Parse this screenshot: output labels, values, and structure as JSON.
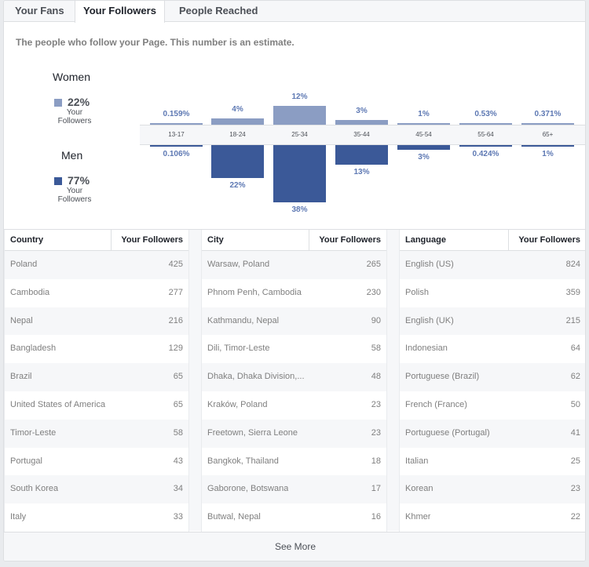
{
  "tabs": [
    {
      "label": "Your Fans"
    },
    {
      "label": "Your Followers",
      "active": true
    },
    {
      "label": "People Reached"
    }
  ],
  "description": "The people who follow your Page. This number is an estimate.",
  "legend": {
    "women": {
      "title": "Women",
      "pct": "22%",
      "sub": "Your Followers",
      "color": "#8b9dc3"
    },
    "men": {
      "title": "Men",
      "pct": "77%",
      "sub": "Your Followers",
      "color": "#3b5998"
    }
  },
  "chart_data": {
    "type": "bar",
    "categories": [
      "13-17",
      "18-24",
      "25-34",
      "35-44",
      "45-54",
      "55-64",
      "65+"
    ],
    "series": [
      {
        "name": "Women",
        "values": [
          0.159,
          4,
          12,
          3,
          1,
          0.53,
          0.371
        ],
        "labels": [
          "0.159%",
          "4%",
          "12%",
          "3%",
          "1%",
          "0.53%",
          "0.371%"
        ]
      },
      {
        "name": "Men",
        "values": [
          0.106,
          22,
          38,
          13,
          3,
          0.424,
          1
        ],
        "labels": [
          "0.106%",
          "22%",
          "38%",
          "13%",
          "3%",
          "0.424%",
          "1%"
        ]
      }
    ]
  },
  "tables": {
    "country": {
      "col1": "Country",
      "col2": "Your Followers",
      "rows": [
        {
          "name": "Poland",
          "value": "425"
        },
        {
          "name": "Cambodia",
          "value": "277"
        },
        {
          "name": "Nepal",
          "value": "216"
        },
        {
          "name": "Bangladesh",
          "value": "129"
        },
        {
          "name": "Brazil",
          "value": "65"
        },
        {
          "name": "United States of America",
          "value": "65"
        },
        {
          "name": "Timor-Leste",
          "value": "58"
        },
        {
          "name": "Portugal",
          "value": "43"
        },
        {
          "name": "South Korea",
          "value": "34"
        },
        {
          "name": "Italy",
          "value": "33"
        }
      ]
    },
    "city": {
      "col1": "City",
      "col2": "Your Followers",
      "rows": [
        {
          "name": "Warsaw, Poland",
          "value": "265"
        },
        {
          "name": "Phnom Penh, Cambodia",
          "value": "230"
        },
        {
          "name": "Kathmandu, Nepal",
          "value": "90"
        },
        {
          "name": "Dili, Timor-Leste",
          "value": "58"
        },
        {
          "name": "Dhaka, Dhaka Division,...",
          "value": "48"
        },
        {
          "name": "Kraków, Poland",
          "value": "23"
        },
        {
          "name": "Freetown, Sierra Leone",
          "value": "23"
        },
        {
          "name": "Bangkok, Thailand",
          "value": "18"
        },
        {
          "name": "Gaborone, Botswana",
          "value": "17"
        },
        {
          "name": "Butwal, Nepal",
          "value": "16"
        }
      ]
    },
    "language": {
      "col1": "Language",
      "col2": "Your Followers",
      "rows": [
        {
          "name": "English (US)",
          "value": "824"
        },
        {
          "name": "Polish",
          "value": "359"
        },
        {
          "name": "English (UK)",
          "value": "215"
        },
        {
          "name": "Indonesian",
          "value": "64"
        },
        {
          "name": "Portuguese (Brazil)",
          "value": "62"
        },
        {
          "name": "French (France)",
          "value": "50"
        },
        {
          "name": "Portuguese (Portugal)",
          "value": "41"
        },
        {
          "name": "Italian",
          "value": "25"
        },
        {
          "name": "Korean",
          "value": "23"
        },
        {
          "name": "Khmer",
          "value": "22"
        }
      ]
    }
  },
  "see_more": "See More"
}
